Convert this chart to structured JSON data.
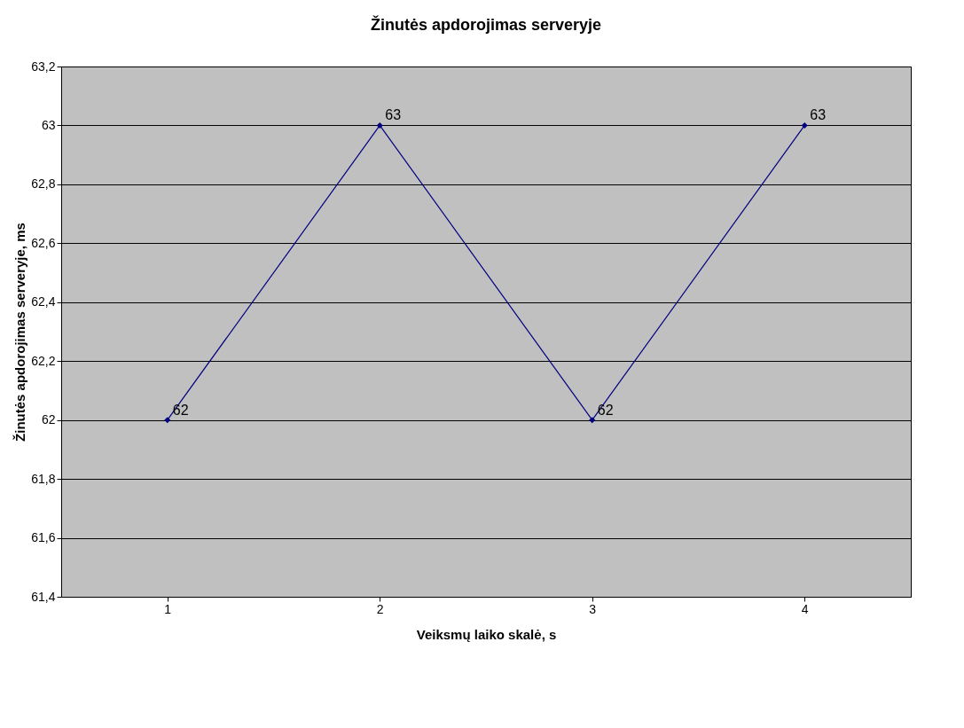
{
  "chart_data": {
    "type": "line",
    "title": "Žinutės apdorojimas serveryje",
    "xlabel": "Veiksmų laiko skalė, s",
    "ylabel": "Žinutės apdorojimas serveryje, ms",
    "categories": [
      "1",
      "2",
      "3",
      "4"
    ],
    "series": [
      {
        "color": "#000080",
        "values": [
          62,
          63,
          62,
          63
        ]
      }
    ],
    "ylim": [
      61.4,
      63.2
    ],
    "yticks": [
      {
        "value": 61.4,
        "label": "61,4"
      },
      {
        "value": 61.6,
        "label": "61,6"
      },
      {
        "value": 61.8,
        "label": "61,8"
      },
      62,
      {
        "value": 62.2,
        "label": "62,2"
      },
      {
        "value": 62.4,
        "label": "62,4"
      },
      {
        "value": 62.6,
        "label": "62,6"
      },
      {
        "value": 62.8,
        "label": "62,8"
      },
      63,
      {
        "value": 63.2,
        "label": "63,2"
      }
    ],
    "grid": "y",
    "marker": "diamond",
    "line_style": "solid",
    "data_labels": true
  }
}
